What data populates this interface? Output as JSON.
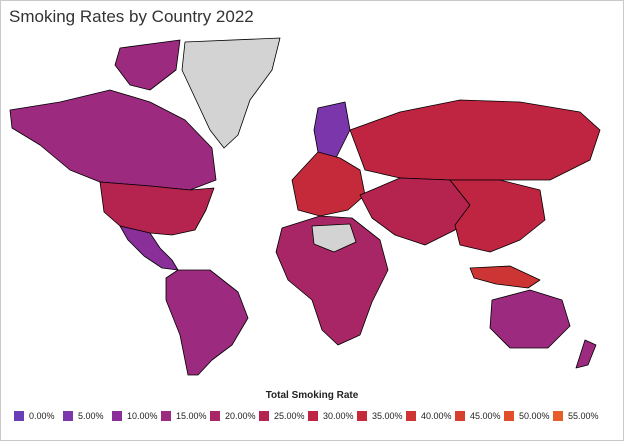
{
  "title": "Smoking Rates by Country 2022",
  "legend": {
    "title": "Total Smoking Rate",
    "items": [
      {
        "label": "0.00%",
        "color": "#6a3db8"
      },
      {
        "label": "5.00%",
        "color": "#7a36aa"
      },
      {
        "label": "10.00%",
        "color": "#8a2f9a"
      },
      {
        "label": "15.00%",
        "color": "#9c2a7f"
      },
      {
        "label": "20.00%",
        "color": "#a82665"
      },
      {
        "label": "25.00%",
        "color": "#b5234f"
      },
      {
        "label": "30.00%",
        "color": "#bf2440"
      },
      {
        "label": "35.00%",
        "color": "#c52a3a"
      },
      {
        "label": "40.00%",
        "color": "#cd3535"
      },
      {
        "label": "45.00%",
        "color": "#d6402f"
      },
      {
        "label": "50.00%",
        "color": "#df4f2a"
      },
      {
        "label": "55.00%",
        "color": "#e55d28"
      }
    ]
  },
  "colors": {
    "no_data": "#d3d3d3",
    "north_america": "#9c2a7f",
    "usa": "#b5234f",
    "mexico": "#8a2f9a",
    "south_america": "#9c2a7f",
    "russia": "#bf2440",
    "europe": "#c52a3a",
    "scandinavia": "#7a36aa",
    "middle_east": "#b5234f",
    "africa": "#a82665",
    "east_asia": "#bf2440",
    "australia": "#9c2a7f",
    "indonesia": "#cd3535"
  }
}
